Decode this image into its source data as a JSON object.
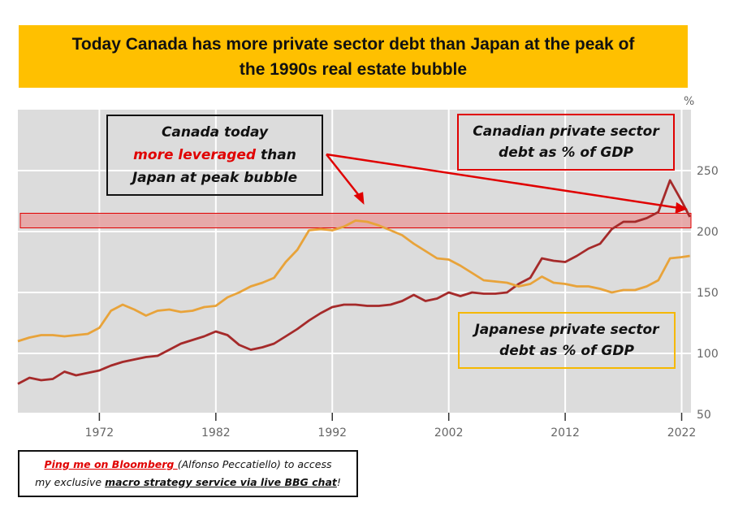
{
  "title": {
    "line1": "Today Canada has more private sector debt than Japan at the peak of",
    "line2": "the 1990s real estate bubble"
  },
  "annotations": {
    "canada_today": {
      "line1": "Canada today",
      "highlight": "more leveraged",
      "line2_rest": " than",
      "line3": "Japan at peak bubble"
    },
    "canadian_label": {
      "line1": "Canadian private sector",
      "line2": "debt as % of GDP"
    },
    "japanese_label": {
      "line1": "Japanese private sector",
      "line2": "debt as % of GDP"
    }
  },
  "footer": {
    "ping": "Ping me on Bloomberg ",
    "name": "(Alfonso Peccatiello) to access",
    "line2_pre": "my exclusive ",
    "service": "macro strategy service via live BBG chat",
    "line2_post": "!"
  },
  "colors": {
    "title_bg": "#FFC000",
    "canada": "#A52A2A",
    "japan": "#E8A33A",
    "band": "#E8A0A0",
    "arrow": "#E00000",
    "plot_bg": "#DCDCDC"
  },
  "chart_data": {
    "type": "line",
    "yunit": "%",
    "xlim": [
      1965,
      2022.8
    ],
    "ylim": [
      45,
      300
    ],
    "x_ticks": [
      "1972",
      "1982",
      "1992",
      "2002",
      "2012",
      "2022"
    ],
    "y_ticks": [
      "50",
      "100",
      "150",
      "200",
      "250"
    ],
    "y_axis_side": "right",
    "grid": true,
    "highlight_band": [
      203,
      215
    ],
    "x": [
      1965,
      1966,
      1967,
      1968,
      1969,
      1970,
      1971,
      1972,
      1973,
      1974,
      1975,
      1976,
      1977,
      1978,
      1979,
      1980,
      1981,
      1982,
      1983,
      1984,
      1985,
      1986,
      1987,
      1988,
      1989,
      1990,
      1991,
      1992,
      1993,
      1994,
      1995,
      1996,
      1997,
      1998,
      1999,
      2000,
      2001,
      2002,
      2003,
      2004,
      2005,
      2006,
      2007,
      2008,
      2009,
      2010,
      2011,
      2012,
      2013,
      2014,
      2015,
      2016,
      2017,
      2018,
      2019,
      2020,
      2021,
      2022,
      2022.7
    ],
    "series": [
      {
        "name": "Canadian private sector debt as % of GDP",
        "color": "#A52A2A",
        "values": [
          75,
          80,
          78,
          79,
          85,
          82,
          84,
          86,
          90,
          93,
          95,
          97,
          98,
          103,
          108,
          111,
          114,
          118,
          115,
          107,
          103,
          105,
          108,
          114,
          120,
          127,
          133,
          138,
          140,
          140,
          139,
          139,
          140,
          143,
          148,
          143,
          145,
          150,
          147,
          150,
          149,
          149,
          150,
          157,
          162,
          178,
          176,
          175,
          180,
          186,
          190,
          202,
          208,
          208,
          211,
          216,
          242,
          225,
          212
        ]
      },
      {
        "name": "Japanese private sector debt as % of GDP",
        "color": "#E8A33A",
        "values": [
          110,
          113,
          115,
          115,
          114,
          115,
          116,
          121,
          135,
          140,
          136,
          131,
          135,
          136,
          134,
          135,
          138,
          139,
          146,
          150,
          155,
          158,
          162,
          175,
          185,
          201,
          202,
          201,
          204,
          209,
          208,
          205,
          201,
          197,
          190,
          184,
          178,
          177,
          172,
          166,
          160,
          159,
          158,
          155,
          157,
          163,
          158,
          157,
          155,
          155,
          153,
          150,
          152,
          152,
          155,
          160,
          178,
          179,
          180
        ]
      }
    ]
  }
}
